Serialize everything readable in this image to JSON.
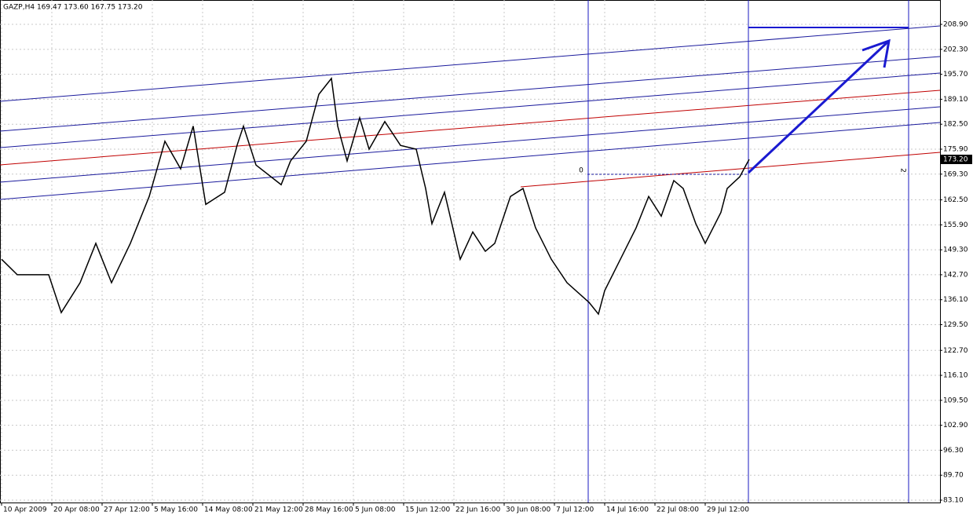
{
  "chart_data": {
    "type": "line",
    "title": "GAZP,H4  169.47 173.60 167.75 173.20",
    "series": [
      {
        "name": "GAZP",
        "color": "#000000",
        "x": [
          0,
          5,
          10,
          15,
          19,
          25,
          30,
          35,
          41,
          47,
          52,
          57,
          61,
          65,
          71,
          75,
          77,
          81,
          89,
          92,
          97,
          101,
          105,
          107,
          110,
          114,
          117,
          122,
          127,
          132,
          135,
          137,
          141,
          146,
          150,
          154,
          157,
          162,
          166,
          170,
          175,
          180,
          187,
          190,
          192,
          197,
          202,
          206,
          210,
          214,
          217,
          221,
          224,
          229,
          231,
          235,
          237,
          238
        ],
        "values": [
          146.8,
          142.7,
          142.7,
          142.7,
          132.7,
          140.6,
          151,
          140.6,
          151,
          163.4,
          178,
          170.7,
          182,
          161.3,
          164.5,
          177,
          182,
          171.7,
          166.5,
          172.8,
          178,
          190.4,
          194.6,
          182,
          172.8,
          184.2,
          175.9,
          183.2,
          176.9,
          175.9,
          165.5,
          156.2,
          164.5,
          146.8,
          154,
          148.9,
          151,
          163.4,
          165.5,
          155.1,
          146.8,
          140.6,
          135.4,
          132.3,
          138.5,
          146.8,
          155.1,
          163.4,
          158.2,
          167.6,
          165.5,
          156.2,
          151,
          159.2,
          165.5,
          168.6,
          171.7,
          173.2
        ]
      }
    ],
    "current_price": {
      "value": 173.2,
      "label": "173.20"
    },
    "markers": [
      "0",
      "2"
    ],
    "xlim": [
      -0.5,
      298.75
    ],
    "xticks": [
      {
        "value": 0,
        "label": "10 Apr 2009"
      },
      {
        "value": 16,
        "label": "20 Apr 08:00"
      },
      {
        "value": 32,
        "label": "27 Apr 12:00"
      },
      {
        "value": 48,
        "label": "5 May 16:00"
      },
      {
        "value": 64,
        "label": "14 May 08:00"
      },
      {
        "value": 80,
        "label": "21 May 12:00"
      },
      {
        "value": 96,
        "label": "28 May 16:00"
      },
      {
        "value": 112,
        "label": "5 Jun 08:00"
      },
      {
        "value": 128,
        "label": "15 Jun 12:00"
      },
      {
        "value": 144,
        "label": "22 Jun 16:00"
      },
      {
        "value": 160,
        "label": "30 Jun 08:00"
      },
      {
        "value": 176,
        "label": "7 Jul 12:00"
      },
      {
        "value": 192,
        "label": "14 Jul 16:00"
      },
      {
        "value": 208,
        "label": "22 Jul 08:00"
      },
      {
        "value": 224,
        "label": "29 Jul 12:00"
      }
    ],
    "ylim": [
      82.48,
      215.34
    ],
    "yticks": [
      {
        "value": 208.9,
        "label": "208.90"
      },
      {
        "value": 202.3,
        "label": "202.30"
      },
      {
        "value": 195.7,
        "label": "195.70"
      },
      {
        "value": 189.1,
        "label": "189.10"
      },
      {
        "value": 182.5,
        "label": "182.50"
      },
      {
        "value": 175.9,
        "label": "175.90"
      },
      {
        "value": 169.3,
        "label": "169.30"
      },
      {
        "value": 162.5,
        "label": "162.50"
      },
      {
        "value": 155.9,
        "label": "155.90"
      },
      {
        "value": 149.3,
        "label": "149.30"
      },
      {
        "value": 142.7,
        "label": "142.70"
      },
      {
        "value": 136.1,
        "label": "136.10"
      },
      {
        "value": 129.5,
        "label": "129.50"
      },
      {
        "value": 122.7,
        "label": "122.70"
      },
      {
        "value": 116.1,
        "label": "116.10"
      },
      {
        "value": 109.5,
        "label": "109.50"
      },
      {
        "value": 102.9,
        "label": "102.90"
      },
      {
        "value": 96.3,
        "label": "96.30"
      },
      {
        "value": 89.7,
        "label": "89.70"
      },
      {
        "value": 83.1,
        "label": "83.10"
      }
    ],
    "grid": true
  }
}
